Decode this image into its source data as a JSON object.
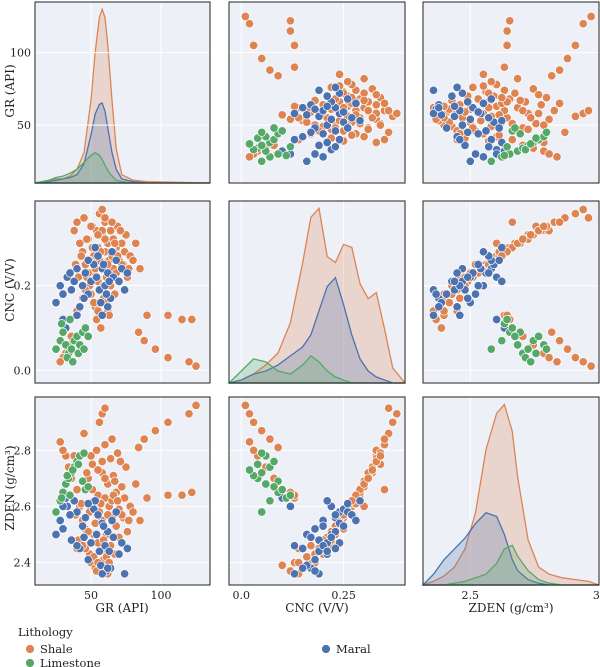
{
  "legend": {
    "title": "Lithology",
    "items": [
      {
        "label": "Shale",
        "color": "#dd8452"
      },
      {
        "label": "Limestone",
        "color": "#55a868"
      },
      {
        "label": "Maral",
        "color": "#4c72b0"
      }
    ]
  },
  "colors": {
    "Shale": "#dd8452",
    "Limestone": "#55a868",
    "Maral": "#4c72b0",
    "panel_bg": "#eef0f7",
    "grid": "#ffffff",
    "frame": "#222222"
  },
  "chart_data": {
    "type": "scatter",
    "variables": [
      "GR",
      "CNC",
      "ZDEN"
    ],
    "axis_titles": {
      "GR": "GR (API)",
      "CNC": "CNC (V/V)",
      "ZDEN": "ZDEN (g/cm³)"
    },
    "ranges": {
      "GR": [
        10,
        135
      ],
      "CNC": [
        -0.03,
        0.4
      ],
      "ZDEN": [
        2.32,
        2.99
      ]
    },
    "ticks": {
      "GR": {
        "values": [
          50,
          100
        ],
        "labels": [
          "50",
          "100"
        ]
      },
      "CNC": {
        "values": [
          0.0,
          0.2
        ],
        "labels": [
          "0.0",
          "0.2"
        ]
      },
      "CNC_x": {
        "values": [
          0.0,
          0.25
        ],
        "labels": [
          "0.0",
          "0.25"
        ]
      },
      "ZDEN": {
        "values": [
          2.4,
          2.6,
          2.8
        ],
        "labels": [
          "2.4",
          "2.6",
          "2.8"
        ]
      },
      "ZDEN_x": {
        "values": [
          2.5,
          3.0
        ],
        "labels": [
          "2.5",
          "3.0"
        ]
      }
    },
    "grid": true,
    "legend_position": "bottom",
    "series": [
      {
        "name": "Shale",
        "points": [
          [
            38,
            0.33,
            2.78
          ],
          [
            40,
            0.35,
            2.66
          ],
          [
            42,
            0.3,
            2.6
          ],
          [
            44,
            0.28,
            2.55
          ],
          [
            45,
            0.36,
            2.86
          ],
          [
            46,
            0.25,
            2.52
          ],
          [
            47,
            0.22,
            2.46
          ],
          [
            48,
            0.31,
            2.7
          ],
          [
            49,
            0.2,
            2.43
          ],
          [
            50,
            0.18,
            2.4
          ],
          [
            51,
            0.34,
            2.75
          ],
          [
            52,
            0.27,
            2.62
          ],
          [
            52,
            0.23,
            2.5
          ],
          [
            53,
            0.15,
            2.38
          ],
          [
            54,
            0.33,
            2.8
          ],
          [
            55,
            0.29,
            2.64
          ],
          [
            55,
            0.21,
            2.47
          ],
          [
            56,
            0.26,
            2.58
          ],
          [
            57,
            0.19,
            2.44
          ],
          [
            58,
            0.32,
            2.72
          ],
          [
            58,
            0.24,
            2.55
          ],
          [
            59,
            0.17,
            2.41
          ],
          [
            60,
            0.28,
            2.63
          ],
          [
            60,
            0.35,
            2.82
          ],
          [
            61,
            0.22,
            2.5
          ],
          [
            62,
            0.3,
            2.68
          ],
          [
            62,
            0.14,
            2.36
          ],
          [
            63,
            0.26,
            2.6
          ],
          [
            64,
            0.33,
            2.77
          ],
          [
            64,
            0.2,
            2.46
          ],
          [
            65,
            0.27,
            2.62
          ],
          [
            66,
            0.24,
            2.57
          ],
          [
            66,
            0.31,
            2.71
          ],
          [
            67,
            0.18,
            2.43
          ],
          [
            68,
            0.29,
            2.65
          ],
          [
            68,
            0.23,
            2.53
          ],
          [
            69,
            0.34,
            2.79
          ],
          [
            70,
            0.26,
            2.59
          ],
          [
            70,
            0.21,
            2.49
          ],
          [
            72,
            0.3,
            2.67
          ],
          [
            73,
            0.25,
            2.56
          ],
          [
            74,
            0.28,
            2.63
          ],
          [
            75,
            0.32,
            2.74
          ],
          [
            77,
            0.24,
            2.55
          ],
          [
            78,
            0.27,
            2.6
          ],
          [
            56,
            0.37,
            2.9
          ],
          [
            58,
            0.38,
            2.93
          ],
          [
            60,
            0.36,
            2.95
          ],
          [
            54,
            0.12,
            2.37
          ],
          [
            57,
            0.1,
            2.39
          ],
          [
            61,
            0.16,
            2.42
          ],
          [
            63,
            0.13,
            2.4
          ],
          [
            49,
            0.26,
            2.58
          ],
          [
            51,
            0.29,
            2.66
          ],
          [
            53,
            0.24,
            2.54
          ],
          [
            47,
            0.31,
            2.72
          ],
          [
            43,
            0.27,
            2.61
          ],
          [
            41,
            0.22,
            2.48
          ],
          [
            39,
            0.25,
            2.57
          ],
          [
            46,
            0.19,
            2.45
          ],
          [
            65,
            0.35,
            2.84
          ],
          [
            67,
            0.3,
            2.69
          ],
          [
            71,
            0.33,
            2.76
          ],
          [
            76,
            0.22,
            2.51
          ],
          [
            80,
            0.26,
            2.58
          ],
          [
            82,
            0.3,
            2.68
          ],
          [
            85,
            0.24,
            2.55
          ],
          [
            90,
            0.13,
            2.63
          ],
          [
            105,
            0.13,
            2.64
          ],
          [
            115,
            0.12,
            2.64
          ],
          [
            122,
            0.12,
            2.65
          ],
          [
            57,
            0.28,
            2.61
          ],
          [
            59,
            0.2,
            2.48
          ],
          [
            62,
            0.25,
            2.57
          ],
          [
            52,
            0.16,
            2.42
          ],
          [
            55,
            0.14,
            2.4
          ],
          [
            48,
            0.23,
            2.51
          ],
          [
            44,
            0.17,
            2.46
          ],
          [
            40,
            0.14,
            2.45
          ],
          [
            36,
            0.08,
            2.7
          ],
          [
            34,
            0.06,
            2.74
          ],
          [
            32,
            0.04,
            2.78
          ],
          [
            30,
            0.03,
            2.8
          ],
          [
            28,
            0.02,
            2.83
          ],
          [
            66,
            0.28,
            2.64
          ],
          [
            69,
            0.27,
            2.62
          ],
          [
            72,
            0.25,
            2.57
          ],
          [
            58,
            0.33,
            2.76
          ],
          [
            60,
            0.31,
            2.7
          ],
          [
            55,
            0.32,
            2.73
          ],
          [
            50,
            0.34,
            2.78
          ],
          [
            125,
            0.01,
            2.96
          ],
          [
            120,
            0.02,
            2.93
          ],
          [
            105,
            0.03,
            2.9
          ],
          [
            96,
            0.05,
            2.87
          ],
          [
            88,
            0.07,
            2.84
          ],
          [
            84,
            0.09,
            2.81
          ]
        ]
      },
      {
        "name": "Limestone",
        "points": [
          [
            25,
            0.05,
            2.58
          ],
          [
            28,
            0.07,
            2.62
          ],
          [
            30,
            0.09,
            2.65
          ],
          [
            32,
            0.06,
            2.68
          ],
          [
            34,
            0.04,
            2.7
          ],
          [
            36,
            0.05,
            2.72
          ],
          [
            38,
            0.07,
            2.74
          ],
          [
            40,
            0.08,
            2.76
          ],
          [
            42,
            0.06,
            2.78
          ],
          [
            44,
            0.09,
            2.69
          ],
          [
            46,
            0.1,
            2.66
          ],
          [
            48,
            0.08,
            2.67
          ],
          [
            33,
            0.03,
            2.71
          ],
          [
            37,
            0.02,
            2.73
          ],
          [
            41,
            0.04,
            2.75
          ],
          [
            45,
            0.05,
            2.79
          ],
          [
            29,
            0.11,
            2.63
          ],
          [
            35,
            0.12,
            2.64
          ]
        ]
      },
      {
        "name": "Maral",
        "points": [
          [
            25,
            0.16,
            2.5
          ],
          [
            28,
            0.2,
            2.55
          ],
          [
            30,
            0.18,
            2.52
          ],
          [
            33,
            0.22,
            2.6
          ],
          [
            36,
            0.19,
            2.48
          ],
          [
            38,
            0.21,
            2.62
          ],
          [
            40,
            0.24,
            2.58
          ],
          [
            42,
            0.15,
            2.45
          ],
          [
            44,
            0.2,
            2.53
          ],
          [
            46,
            0.23,
            2.56
          ],
          [
            48,
            0.18,
            2.41
          ],
          [
            50,
            0.21,
            2.47
          ],
          [
            52,
            0.25,
            2.59
          ],
          [
            54,
            0.22,
            2.5
          ],
          [
            56,
            0.19,
            2.44
          ],
          [
            58,
            0.24,
            2.54
          ],
          [
            60,
            0.2,
            2.46
          ],
          [
            62,
            0.23,
            2.51
          ],
          [
            64,
            0.17,
            2.38
          ],
          [
            66,
            0.22,
            2.49
          ],
          [
            68,
            0.26,
            2.58
          ],
          [
            70,
            0.21,
            2.43
          ],
          [
            72,
            0.24,
            2.47
          ],
          [
            74,
            0.19,
            2.36
          ],
          [
            76,
            0.23,
            2.45
          ],
          [
            55,
            0.27,
            2.57
          ],
          [
            57,
            0.16,
            2.39
          ],
          [
            59,
            0.25,
            2.53
          ],
          [
            61,
            0.18,
            2.37
          ],
          [
            63,
            0.21,
            2.44
          ],
          [
            30,
            0.12,
            2.6
          ],
          [
            32,
            0.1,
            2.63
          ],
          [
            53,
            0.29,
            2.62
          ],
          [
            65,
            0.28,
            2.55
          ],
          [
            58,
            0.13,
            2.36
          ],
          [
            62,
            0.15,
            2.38
          ],
          [
            48,
            0.26,
            2.61
          ],
          [
            45,
            0.17,
            2.49
          ],
          [
            35,
            0.23,
            2.57
          ],
          [
            40,
            0.13,
            2.46
          ]
        ]
      }
    ],
    "kde": {
      "GR": {
        "x": [
          10,
          20,
          25,
          30,
          35,
          40,
          45,
          50,
          53,
          56,
          58,
          60,
          62,
          65,
          68,
          72,
          80,
          90,
          110,
          135
        ],
        "Shale": [
          0,
          2,
          3,
          3,
          5,
          10,
          22,
          60,
          95,
          120,
          126,
          120,
          100,
          60,
          25,
          6,
          2,
          1,
          0.5,
          0
        ],
        "Maral": [
          0,
          1,
          2,
          3,
          4,
          6,
          14,
          35,
          50,
          57,
          58,
          52,
          40,
          22,
          10,
          3,
          1,
          0,
          0,
          0
        ],
        "Limestone": [
          0,
          2,
          4,
          5,
          7,
          10,
          15,
          20,
          22,
          20,
          17,
          13,
          9,
          5,
          2,
          1,
          0,
          0,
          0,
          0
        ]
      },
      "CNC": {
        "x": [
          -0.03,
          0.0,
          0.03,
          0.06,
          0.09,
          0.12,
          0.15,
          0.17,
          0.19,
          0.21,
          0.23,
          0.25,
          0.27,
          0.29,
          0.31,
          0.33,
          0.35,
          0.37,
          0.4
        ],
        "Shale": [
          0,
          1,
          3,
          6,
          10,
          20,
          40,
          55,
          58,
          42,
          40,
          46,
          45,
          33,
          28,
          30,
          18,
          5,
          0
        ],
        "Maral": [
          0,
          1,
          3,
          4,
          6,
          9,
          12,
          16,
          24,
          32,
          35,
          26,
          16,
          8,
          4,
          2,
          1,
          0,
          0
        ],
        "Limestone": [
          0,
          4,
          8,
          7,
          4,
          3,
          6,
          9,
          7,
          4,
          2,
          1,
          0,
          0,
          0,
          0,
          0,
          0,
          0
        ]
      },
      "ZDEN": {
        "x": [
          2.32,
          2.36,
          2.4,
          2.44,
          2.48,
          2.52,
          2.56,
          2.6,
          2.63,
          2.66,
          2.68,
          2.72,
          2.76,
          2.8,
          2.85,
          2.9,
          2.95,
          2.99
        ],
        "Shale": [
          0,
          2,
          5,
          10,
          20,
          40,
          75,
          95,
          100,
          85,
          60,
          25,
          10,
          6,
          4,
          3,
          2,
          0
        ],
        "Maral": [
          0,
          6,
          14,
          20,
          26,
          34,
          40,
          38,
          28,
          14,
          8,
          3,
          1,
          0,
          0,
          0,
          0,
          0
        ],
        "Limestone": [
          0,
          0,
          0,
          1,
          2,
          4,
          6,
          12,
          20,
          22,
          16,
          8,
          3,
          1,
          0,
          0,
          0,
          0
        ]
      }
    }
  }
}
